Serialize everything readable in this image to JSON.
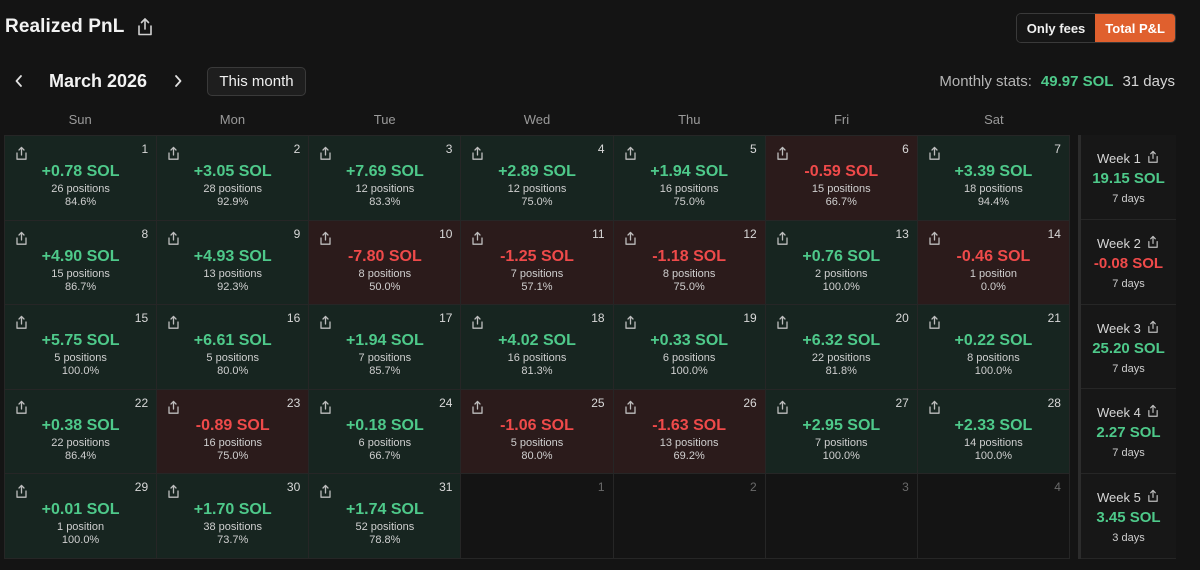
{
  "header": {
    "title": "Realized PnL",
    "share_icon": "share-icon"
  },
  "toggle": {
    "only_fees": "Only fees",
    "total_pnl": "Total P&L",
    "active": "total_pnl"
  },
  "nav": {
    "prev_icon": "chevron-left-icon",
    "next_icon": "chevron-right-icon",
    "month_label": "March 2026",
    "this_month": "This month"
  },
  "stats": {
    "label": "Monthly stats:",
    "value": "49.97 SOL",
    "days": "31 days"
  },
  "weekdays": [
    "Sun",
    "Mon",
    "Tue",
    "Wed",
    "Thu",
    "Fri",
    "Sat"
  ],
  "colors": {
    "positive": "#4ec98a",
    "negative": "#ef4a4a",
    "accent": "#e0602e"
  },
  "days": [
    {
      "day": "1",
      "pnl": "+0.78 SOL",
      "positions": "26 positions",
      "winrate": "84.6%",
      "status": "pos"
    },
    {
      "day": "2",
      "pnl": "+3.05 SOL",
      "positions": "28 positions",
      "winrate": "92.9%",
      "status": "pos"
    },
    {
      "day": "3",
      "pnl": "+7.69 SOL",
      "positions": "12 positions",
      "winrate": "83.3%",
      "status": "pos"
    },
    {
      "day": "4",
      "pnl": "+2.89 SOL",
      "positions": "12 positions",
      "winrate": "75.0%",
      "status": "pos"
    },
    {
      "day": "5",
      "pnl": "+1.94 SOL",
      "positions": "16 positions",
      "winrate": "75.0%",
      "status": "pos"
    },
    {
      "day": "6",
      "pnl": "-0.59 SOL",
      "positions": "15 positions",
      "winrate": "66.7%",
      "status": "neg"
    },
    {
      "day": "7",
      "pnl": "+3.39 SOL",
      "positions": "18 positions",
      "winrate": "94.4%",
      "status": "pos"
    },
    {
      "day": "8",
      "pnl": "+4.90 SOL",
      "positions": "15 positions",
      "winrate": "86.7%",
      "status": "pos"
    },
    {
      "day": "9",
      "pnl": "+4.93 SOL",
      "positions": "13 positions",
      "winrate": "92.3%",
      "status": "pos"
    },
    {
      "day": "10",
      "pnl": "-7.80 SOL",
      "positions": "8 positions",
      "winrate": "50.0%",
      "status": "neg"
    },
    {
      "day": "11",
      "pnl": "-1.25 SOL",
      "positions": "7 positions",
      "winrate": "57.1%",
      "status": "neg"
    },
    {
      "day": "12",
      "pnl": "-1.18 SOL",
      "positions": "8 positions",
      "winrate": "75.0%",
      "status": "neg"
    },
    {
      "day": "13",
      "pnl": "+0.76 SOL",
      "positions": "2 positions",
      "winrate": "100.0%",
      "status": "pos"
    },
    {
      "day": "14",
      "pnl": "-0.46 SOL",
      "positions": "1 position",
      "winrate": "0.0%",
      "status": "neg"
    },
    {
      "day": "15",
      "pnl": "+5.75 SOL",
      "positions": "5 positions",
      "winrate": "100.0%",
      "status": "pos"
    },
    {
      "day": "16",
      "pnl": "+6.61 SOL",
      "positions": "5 positions",
      "winrate": "80.0%",
      "status": "pos"
    },
    {
      "day": "17",
      "pnl": "+1.94 SOL",
      "positions": "7 positions",
      "winrate": "85.7%",
      "status": "pos"
    },
    {
      "day": "18",
      "pnl": "+4.02 SOL",
      "positions": "16 positions",
      "winrate": "81.3%",
      "status": "pos"
    },
    {
      "day": "19",
      "pnl": "+0.33 SOL",
      "positions": "6 positions",
      "winrate": "100.0%",
      "status": "pos"
    },
    {
      "day": "20",
      "pnl": "+6.32 SOL",
      "positions": "22 positions",
      "winrate": "81.8%",
      "status": "pos"
    },
    {
      "day": "21",
      "pnl": "+0.22 SOL",
      "positions": "8 positions",
      "winrate": "100.0%",
      "status": "pos"
    },
    {
      "day": "22",
      "pnl": "+0.38 SOL",
      "positions": "22 positions",
      "winrate": "86.4%",
      "status": "pos"
    },
    {
      "day": "23",
      "pnl": "-0.89 SOL",
      "positions": "16 positions",
      "winrate": "75.0%",
      "status": "neg"
    },
    {
      "day": "24",
      "pnl": "+0.18 SOL",
      "positions": "6 positions",
      "winrate": "66.7%",
      "status": "pos"
    },
    {
      "day": "25",
      "pnl": "-1.06 SOL",
      "positions": "5 positions",
      "winrate": "80.0%",
      "status": "neg"
    },
    {
      "day": "26",
      "pnl": "-1.63 SOL",
      "positions": "13 positions",
      "winrate": "69.2%",
      "status": "neg"
    },
    {
      "day": "27",
      "pnl": "+2.95 SOL",
      "positions": "7 positions",
      "winrate": "100.0%",
      "status": "pos"
    },
    {
      "day": "28",
      "pnl": "+2.33 SOL",
      "positions": "14 positions",
      "winrate": "100.0%",
      "status": "pos"
    },
    {
      "day": "29",
      "pnl": "+0.01 SOL",
      "positions": "1 position",
      "winrate": "100.0%",
      "status": "pos"
    },
    {
      "day": "30",
      "pnl": "+1.70 SOL",
      "positions": "38 positions",
      "winrate": "73.7%",
      "status": "pos"
    },
    {
      "day": "31",
      "pnl": "+1.74 SOL",
      "positions": "52 positions",
      "winrate": "78.8%",
      "status": "pos"
    },
    {
      "day": "1",
      "status": "empty"
    },
    {
      "day": "2",
      "status": "empty"
    },
    {
      "day": "3",
      "status": "empty"
    },
    {
      "day": "4",
      "status": "empty"
    }
  ],
  "weeks": [
    {
      "label": "Week 1",
      "value": "19.15 SOL",
      "days": "7 days",
      "status": "pos"
    },
    {
      "label": "Week 2",
      "value": "-0.08 SOL",
      "days": "7 days",
      "status": "neg"
    },
    {
      "label": "Week 3",
      "value": "25.20 SOL",
      "days": "7 days",
      "status": "pos"
    },
    {
      "label": "Week 4",
      "value": "2.27 SOL",
      "days": "7 days",
      "status": "pos"
    },
    {
      "label": "Week 5",
      "value": "3.45 SOL",
      "days": "3 days",
      "status": "pos"
    }
  ]
}
